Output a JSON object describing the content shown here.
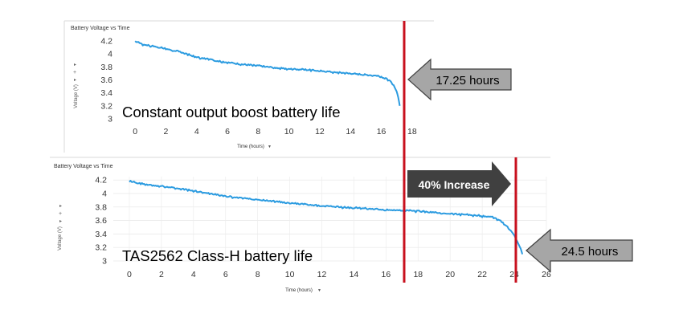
{
  "annotations": {
    "top_arrow": "17.25 hours",
    "bottom_arrow": "24.5 hours",
    "increase_arrow": "40% Increase"
  },
  "colors": {
    "series": "#2b9be0",
    "marker_line": "#c8101e",
    "gray_arrow_fill": "#a6a6a6",
    "dark_arrow_fill": "#404040"
  },
  "chart_data": [
    {
      "type": "line",
      "title": "Battery Voltage vs Time",
      "overlay_label": "Constant output boost battery life",
      "xlabel": "Time (hours)",
      "ylabel": "Voltage (V)",
      "xlim": [
        -1,
        19
      ],
      "ylim": [
        3,
        4.25
      ],
      "xticks": [
        "0",
        "2",
        "4",
        "6",
        "8",
        "10",
        "12",
        "14",
        "16",
        "18"
      ],
      "yticks": [
        "4.2",
        "4",
        "3.8",
        "3.6",
        "3.4",
        "3.2",
        "3"
      ],
      "marker_x": 17.25,
      "series": [
        {
          "x": [
            0,
            0.5,
            1,
            2,
            3,
            4,
            5,
            6,
            7,
            8,
            9,
            10,
            11,
            12,
            13,
            14,
            15,
            15.5,
            16,
            16.5,
            16.8,
            17.0,
            17.1,
            17.2
          ],
          "values": [
            4.2,
            4.15,
            4.13,
            4.08,
            4.03,
            3.95,
            3.91,
            3.87,
            3.84,
            3.82,
            3.79,
            3.77,
            3.76,
            3.74,
            3.72,
            3.7,
            3.68,
            3.67,
            3.65,
            3.6,
            3.52,
            3.42,
            3.33,
            3.2
          ]
        }
      ]
    },
    {
      "type": "line",
      "title": "Battery Voltage vs Time",
      "overlay_label": "TAS2562 Class-H battery life",
      "xlabel": "Time (hours)",
      "ylabel": "Voltage (V)",
      "xlim": [
        -1,
        26
      ],
      "ylim": [
        3,
        4.25
      ],
      "xticks": [
        "0",
        "2",
        "4",
        "6",
        "8",
        "10",
        "12",
        "14",
        "16",
        "18",
        "20",
        "22",
        "24",
        "26"
      ],
      "yticks": [
        "4.2",
        "4",
        "3.8",
        "3.6",
        "3.4",
        "3.2",
        "3"
      ],
      "marker_x": 24.5,
      "series": [
        {
          "x": [
            0,
            0.5,
            1,
            2,
            3,
            4,
            5,
            6,
            8,
            10,
            12,
            14,
            16,
            17,
            18,
            19,
            20,
            21,
            22,
            22.5,
            23,
            23.5,
            24,
            24.2,
            24.4,
            24.5
          ],
          "values": [
            4.19,
            4.16,
            4.14,
            4.11,
            4.08,
            4.04,
            4.0,
            3.96,
            3.91,
            3.86,
            3.82,
            3.79,
            3.76,
            3.75,
            3.74,
            3.72,
            3.7,
            3.69,
            3.67,
            3.66,
            3.62,
            3.52,
            3.38,
            3.28,
            3.18,
            3.1
          ]
        }
      ]
    }
  ]
}
